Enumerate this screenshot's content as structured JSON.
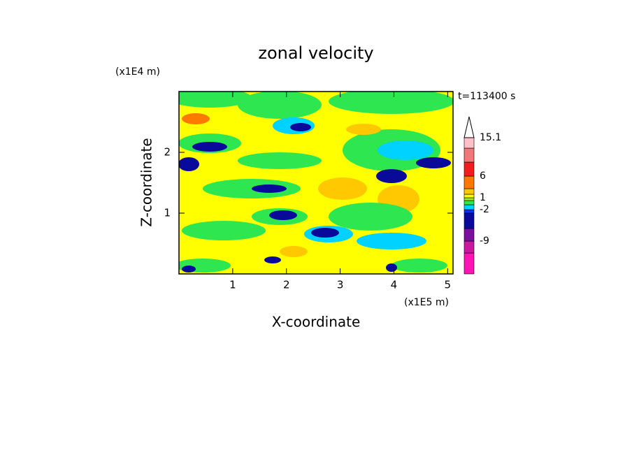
{
  "chart_data": {
    "type": "contour",
    "title": "zonal velocity",
    "time_label": "t=113400 s",
    "x_label": "X-coordinate",
    "y_label": "Z-coordinate",
    "x_unit": "(x1E5 m)",
    "y_unit": "(x1E4 m)",
    "xlim": [
      0,
      5.1
    ],
    "xticks": [
      1,
      2,
      3,
      4,
      5
    ],
    "ylim": [
      0,
      3
    ],
    "yticks": [
      1,
      2
    ],
    "colorbar": {
      "colors": [
        "#ff14b4",
        "#c81aa0",
        "#7a0fa0",
        "#0a0a9a",
        "#0032ff",
        "#00d2ff",
        "#2ee650",
        "#a8e632",
        "#ffff00",
        "#ffc800",
        "#ff7800",
        "#f01e1e",
        "#f07878",
        "#ffc0c8"
      ],
      "ticks": [
        15.1,
        6,
        1,
        -2,
        -9
      ]
    }
  }
}
